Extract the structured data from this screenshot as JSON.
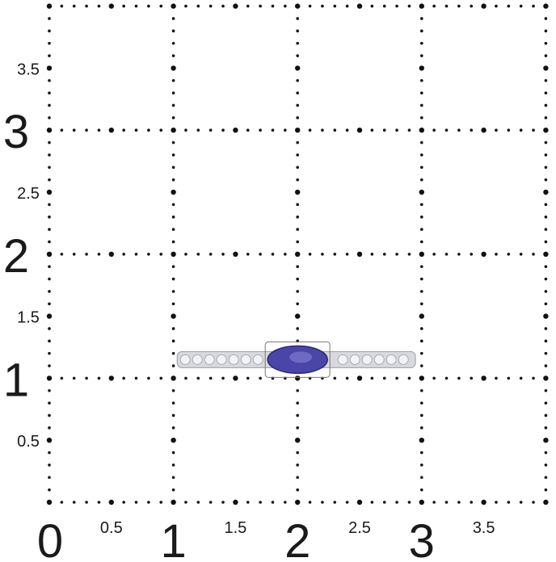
{
  "grid": {
    "units_x": [
      0,
      4
    ],
    "units_y": [
      0,
      4
    ],
    "x_major_labels": [
      "0",
      "1",
      "2",
      "3"
    ],
    "x_minor_labels": [
      "0.5",
      "1.5",
      "2.5",
      "3.5"
    ],
    "y_major_labels": [
      "1",
      "2",
      "3"
    ],
    "y_minor_labels": [
      "0.5",
      "1.5",
      "2.5",
      "3.5"
    ]
  },
  "ring": {
    "band_from": 1.03,
    "band_to": 2.95,
    "center": 2,
    "height": 1.15,
    "stone_color": "#4a46a8",
    "band_color": "#d8d9dd"
  }
}
